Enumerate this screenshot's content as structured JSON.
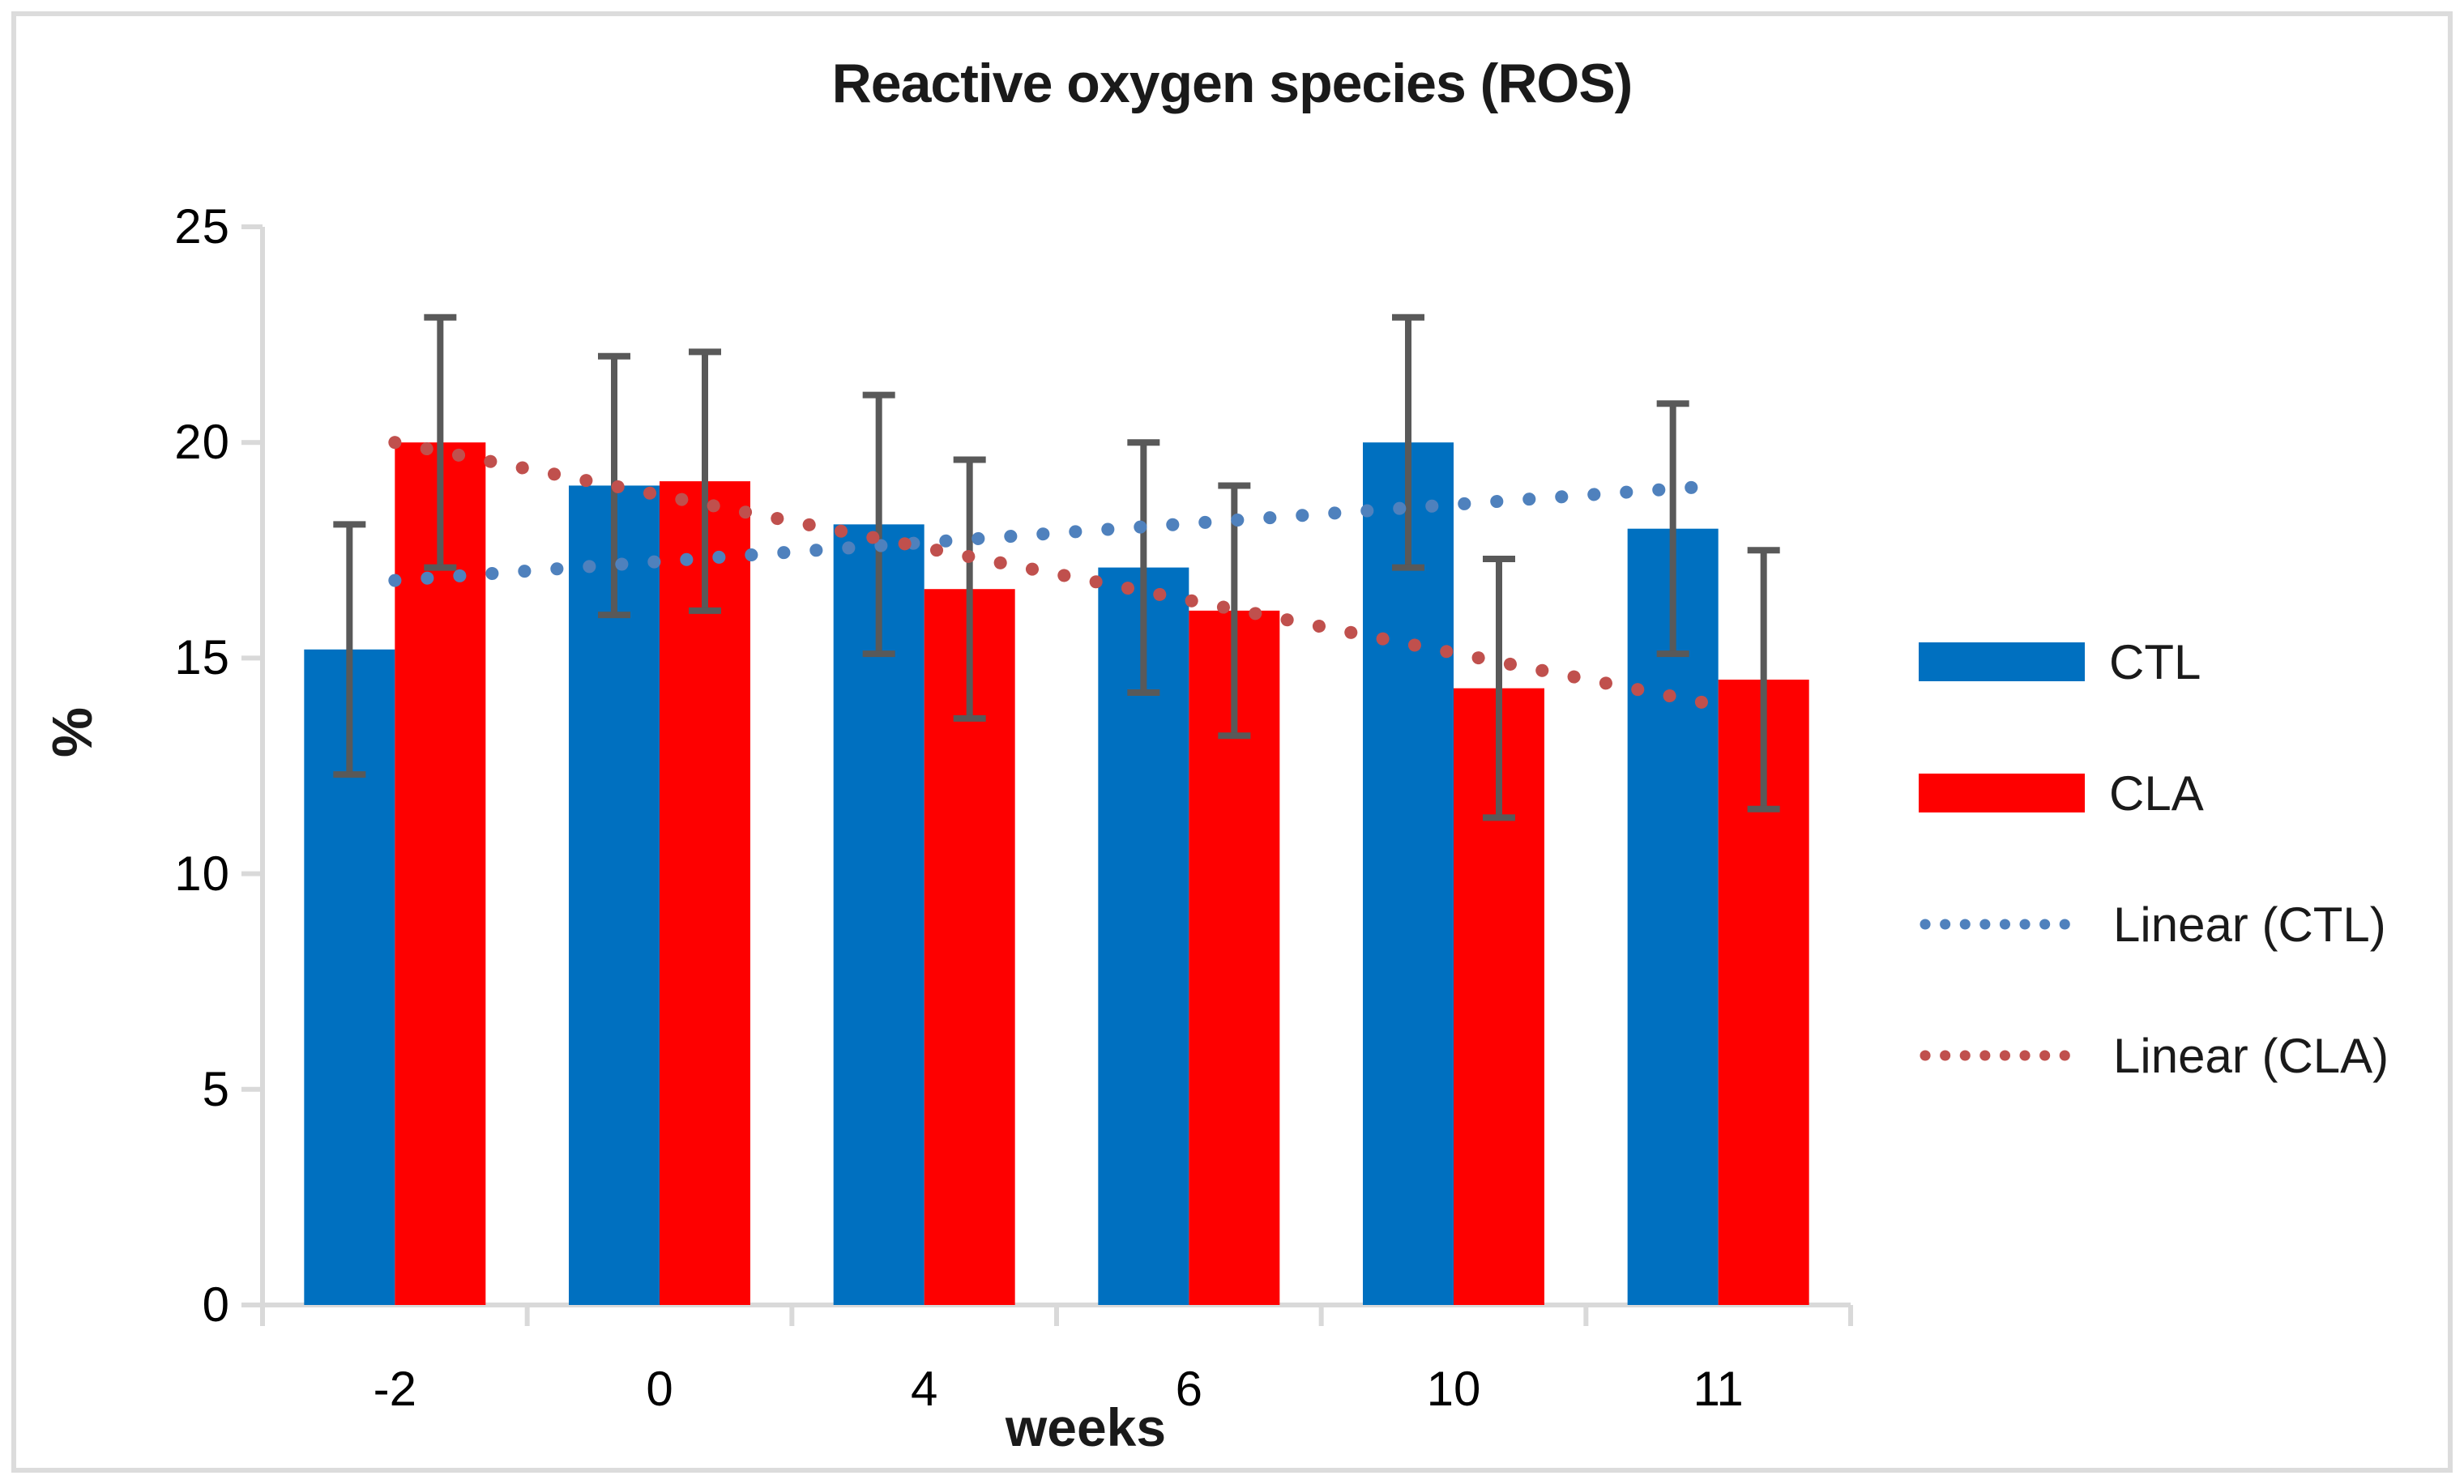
{
  "figure": {
    "title": "Reactive oxygen species (ROS)",
    "y_axis_title": "%",
    "x_axis_title": "weeks"
  },
  "chart_data": {
    "type": "bar",
    "title": "Reactive oxygen species (ROS)",
    "xlabel": "weeks",
    "ylabel": "%",
    "ylim": [
      0,
      25
    ],
    "y_ticks": [
      0,
      5,
      10,
      15,
      20,
      25
    ],
    "grid": false,
    "legend_position": "right",
    "categories": [
      "-2",
      "0",
      "4",
      "6",
      "10",
      "11"
    ],
    "series": [
      {
        "name": "CTL",
        "color": "#0070c0",
        "values": [
          15.2,
          19.0,
          18.1,
          17.1,
          20.0,
          18.0
        ],
        "errors": [
          2.9,
          3.0,
          3.0,
          2.9,
          2.9,
          2.9
        ]
      },
      {
        "name": "CLA",
        "color": "#fe0000",
        "values": [
          20.0,
          19.1,
          16.6,
          16.1,
          14.3,
          14.5
        ],
        "errors": [
          2.9,
          3.0,
          3.0,
          2.9,
          3.0,
          3.0
        ]
      }
    ],
    "trendlines": [
      {
        "name": "Linear (CTL)",
        "color": "#4f81bd",
        "start": 16.8,
        "end": 19.0
      },
      {
        "name": "Linear (CLA)",
        "color": "#c0504d",
        "start": 20.0,
        "end": 13.9
      }
    ],
    "error_bar_color": "#595959",
    "axis_color": "#d9d9d9"
  },
  "legend": {
    "entries": [
      {
        "label": "CTL",
        "type": "rect",
        "color": "#0070c0"
      },
      {
        "label": "CLA",
        "type": "rect",
        "color": "#fe0000"
      },
      {
        "label": "Linear (CTL)",
        "type": "dotted",
        "color": "#4f81bd"
      },
      {
        "label": "Linear (CLA)",
        "type": "dotted",
        "color": "#c0504d"
      }
    ]
  }
}
